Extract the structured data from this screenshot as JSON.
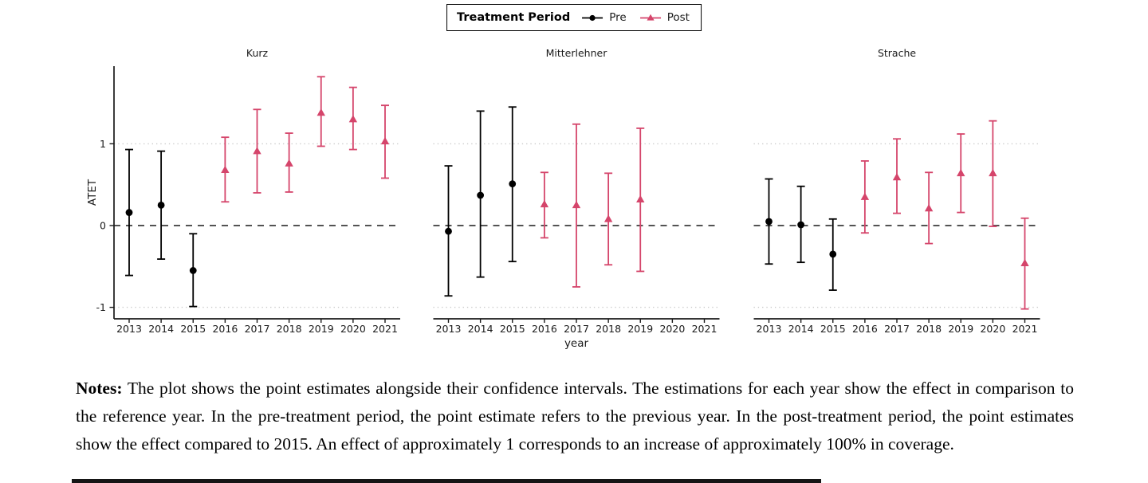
{
  "legend": {
    "title": "Treatment Period",
    "entries": [
      {
        "label": "Pre",
        "period": "pre",
        "marker": "circle-icon",
        "color": "#000000"
      },
      {
        "label": "Post",
        "period": "post",
        "marker": "triangle-icon",
        "color": "#D5456B"
      }
    ]
  },
  "notes": {
    "label": "Notes:",
    "text": "The plot shows the point estimates alongside their confidence intervals. The estimations for each year show the effect in comparison to the reference year. In the pre-treatment period, the point estimate refers to the previous year. In the post-treatment period, the point estimates show the effect compared to 2015. An effect of approximately 1 corresponds to an increase of approximately 100% in coverage."
  },
  "chart_data": {
    "type": "scatter",
    "subtype": "pointrange-with-ci-facets",
    "xlabel": "year",
    "ylabel": "ATET",
    "x_categories": [
      2013,
      2014,
      2015,
      2016,
      2017,
      2018,
      2019,
      2020,
      2021
    ],
    "yticks": [
      -1,
      0,
      1
    ],
    "ylim": [
      -1.15,
      1.95
    ],
    "reference_lines": {
      "dashed": [
        0
      ],
      "dotted": [
        -1,
        1
      ]
    },
    "legend_position": "top-center",
    "colors": {
      "pre": "#000000",
      "post": "#D5456B",
      "grid": "#C9C9C9",
      "axis": "#1A1A1A"
    },
    "facets": [
      {
        "title": "Kurz",
        "points": [
          {
            "year": 2013,
            "period": "pre",
            "estimate": 0.16,
            "ci_low": -0.61,
            "ci_high": 0.93
          },
          {
            "year": 2014,
            "period": "pre",
            "estimate": 0.25,
            "ci_low": -0.41,
            "ci_high": 0.91
          },
          {
            "year": 2015,
            "period": "pre",
            "estimate": -0.55,
            "ci_low": -0.99,
            "ci_high": -0.1
          },
          {
            "year": 2016,
            "period": "post",
            "estimate": 0.68,
            "ci_low": 0.29,
            "ci_high": 1.08
          },
          {
            "year": 2017,
            "period": "post",
            "estimate": 0.91,
            "ci_low": 0.4,
            "ci_high": 1.42
          },
          {
            "year": 2018,
            "period": "post",
            "estimate": 0.76,
            "ci_low": 0.41,
            "ci_high": 1.13
          },
          {
            "year": 2019,
            "period": "post",
            "estimate": 1.38,
            "ci_low": 0.97,
            "ci_high": 1.82
          },
          {
            "year": 2020,
            "period": "post",
            "estimate": 1.3,
            "ci_low": 0.93,
            "ci_high": 1.69
          },
          {
            "year": 2021,
            "period": "post",
            "estimate": 1.03,
            "ci_low": 0.58,
            "ci_high": 1.47
          }
        ]
      },
      {
        "title": "Mitterlehner",
        "points": [
          {
            "year": 2013,
            "period": "pre",
            "estimate": -0.07,
            "ci_low": -0.86,
            "ci_high": 0.73
          },
          {
            "year": 2014,
            "period": "pre",
            "estimate": 0.37,
            "ci_low": -0.63,
            "ci_high": 1.4
          },
          {
            "year": 2015,
            "period": "pre",
            "estimate": 0.51,
            "ci_low": -0.44,
            "ci_high": 1.45
          },
          {
            "year": 2016,
            "period": "post",
            "estimate": 0.26,
            "ci_low": -0.15,
            "ci_high": 0.65
          },
          {
            "year": 2017,
            "period": "post",
            "estimate": 0.25,
            "ci_low": -0.75,
            "ci_high": 1.24
          },
          {
            "year": 2018,
            "period": "post",
            "estimate": 0.08,
            "ci_low": -0.48,
            "ci_high": 0.64
          },
          {
            "year": 2019,
            "period": "post",
            "estimate": 0.32,
            "ci_low": -0.56,
            "ci_high": 1.19
          }
        ]
      },
      {
        "title": "Strache",
        "points": [
          {
            "year": 2013,
            "period": "pre",
            "estimate": 0.05,
            "ci_low": -0.47,
            "ci_high": 0.57
          },
          {
            "year": 2014,
            "period": "pre",
            "estimate": 0.01,
            "ci_low": -0.45,
            "ci_high": 0.48
          },
          {
            "year": 2015,
            "period": "pre",
            "estimate": -0.35,
            "ci_low": -0.79,
            "ci_high": 0.08
          },
          {
            "year": 2016,
            "period": "post",
            "estimate": 0.35,
            "ci_low": -0.09,
            "ci_high": 0.79
          },
          {
            "year": 2017,
            "period": "post",
            "estimate": 0.59,
            "ci_low": 0.15,
            "ci_high": 1.06
          },
          {
            "year": 2018,
            "period": "post",
            "estimate": 0.21,
            "ci_low": -0.22,
            "ci_high": 0.65
          },
          {
            "year": 2019,
            "period": "post",
            "estimate": 0.64,
            "ci_low": 0.16,
            "ci_high": 1.12
          },
          {
            "year": 2020,
            "period": "post",
            "estimate": 0.64,
            "ci_low": -0.01,
            "ci_high": 1.28
          },
          {
            "year": 2021,
            "period": "post",
            "estimate": -0.46,
            "ci_low": -1.02,
            "ci_high": 0.09
          }
        ]
      }
    ]
  }
}
